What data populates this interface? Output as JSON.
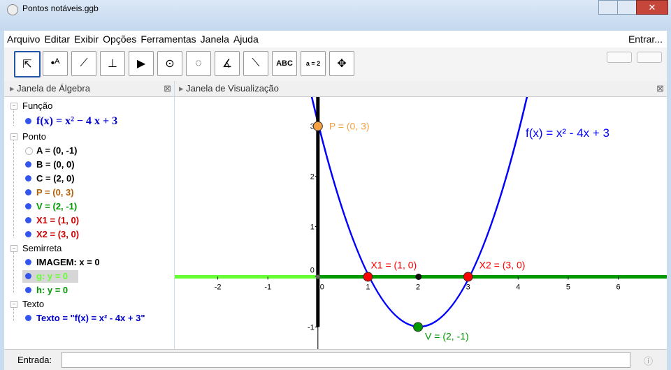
{
  "window": {
    "title": "Pontos notáveis.ggb"
  },
  "menu": {
    "items": [
      "Arquivo",
      "Editar",
      "Exibir",
      "Opções",
      "Ferramentas",
      "Janela",
      "Ajuda"
    ],
    "login": "Entrar..."
  },
  "toolbar": {
    "text_tool": "ABC",
    "slider_tool": "a = 2"
  },
  "algebra": {
    "title": "Janela de Álgebra",
    "groups": [
      {
        "name": "Função",
        "items": [
          {
            "text": "f(x) = x² − 4 x + 3",
            "color": "#0000cc"
          }
        ]
      },
      {
        "name": "Ponto",
        "items": [
          {
            "text": "A = (0, -1)",
            "color": "#000000",
            "hidden": true
          },
          {
            "text": "B = (0, 0)",
            "color": "#000000"
          },
          {
            "text": "C = (2, 0)",
            "color": "#000000"
          },
          {
            "text": "P = (0, 3)",
            "color": "#b45f06"
          },
          {
            "text": "V = (2, -1)",
            "color": "#009900"
          },
          {
            "text": "X1 = (1, 0)",
            "color": "#cc0000"
          },
          {
            "text": "X2 = (3, 0)",
            "color": "#cc0000"
          }
        ]
      },
      {
        "name": "Semirreta",
        "items": [
          {
            "text": "IMAGEM: x = 0",
            "color": "#000000"
          },
          {
            "text": "g: y = 0",
            "color": "#66ff33",
            "selected": true
          },
          {
            "text": "h: y = 0",
            "color": "#009900"
          }
        ]
      },
      {
        "name": "Texto",
        "items": [
          {
            "text": "Texto = \"f(x) = x² - 4x + 3\"",
            "color": "#0000cc"
          }
        ]
      }
    ]
  },
  "graphics": {
    "title": "Janela de Visualização",
    "xlim": [
      -2.86,
      6.97
    ],
    "ylim": [
      -1.44,
      3.58
    ],
    "xticks": [
      -2,
      -1,
      0,
      1,
      2,
      3,
      4,
      5,
      6
    ],
    "yticks": [
      -1,
      0,
      1,
      2,
      3
    ],
    "function_label": "f(x) = x² - 4x + 3",
    "function_color": "#0000ff",
    "points": [
      {
        "label": "P = (0, 3)",
        "x": 0,
        "y": 3,
        "color": "#f5a142"
      },
      {
        "label": "X1 = (1, 0)",
        "x": 1,
        "y": 0,
        "color": "#ff0000"
      },
      {
        "label": "X2 = (3, 0)",
        "x": 3,
        "y": 0,
        "color": "#ff0000"
      },
      {
        "label": "V = (2, -1)",
        "x": 2,
        "y": -1,
        "color": "#009900"
      }
    ]
  },
  "input": {
    "label": "Entrada:"
  }
}
